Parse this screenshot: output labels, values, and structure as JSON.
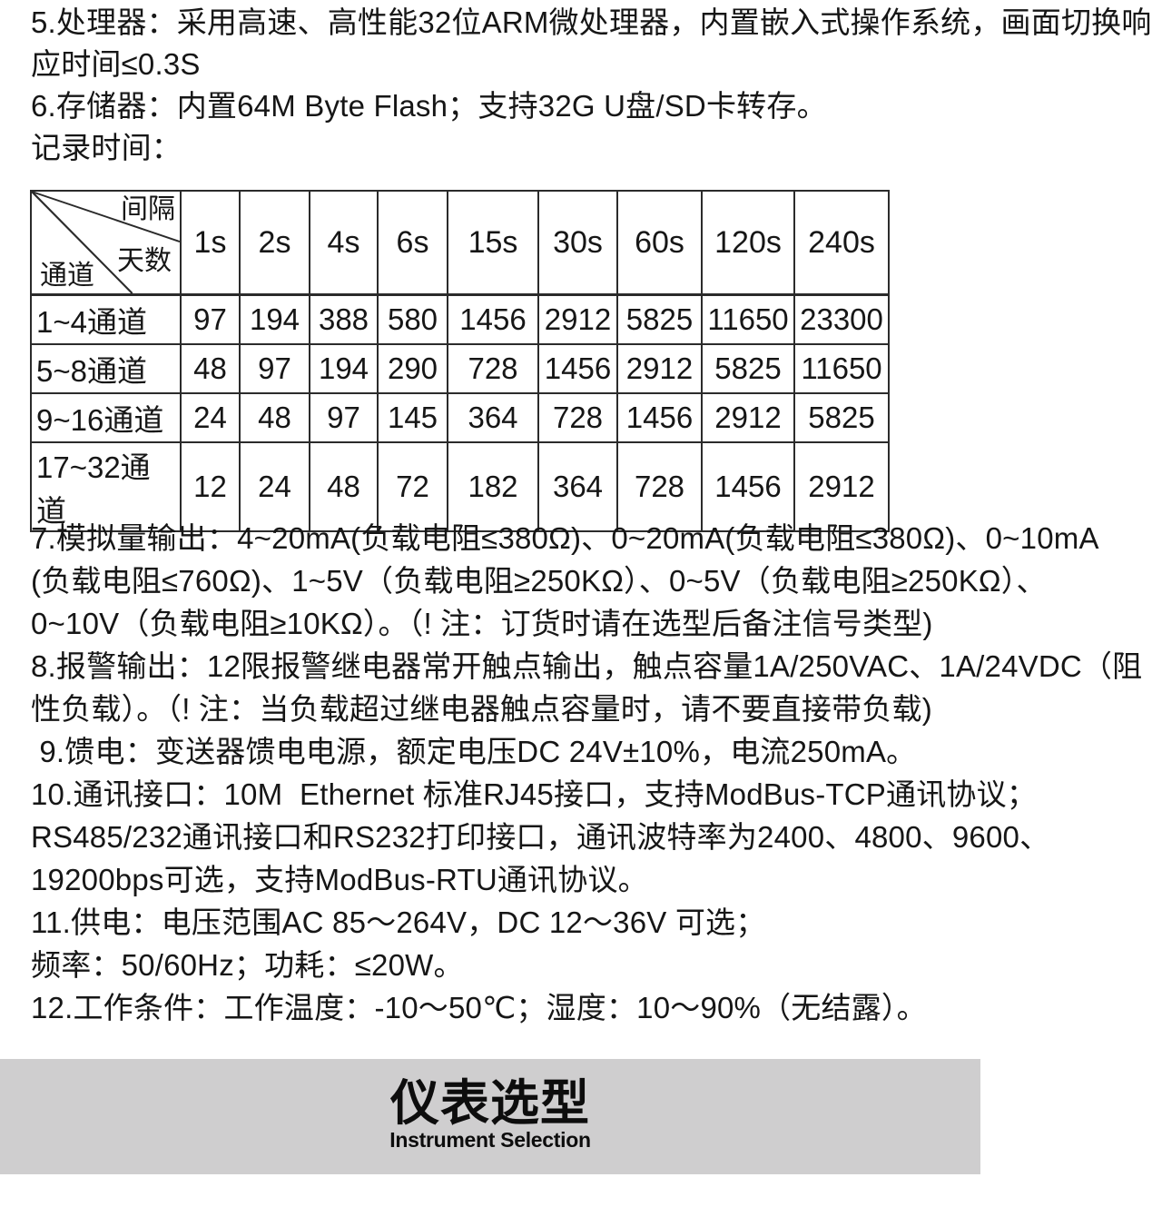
{
  "colors": {
    "page_background": "#ffffff",
    "text": "#161616",
    "table_border": "#2b2b2b",
    "banner_background": "#cfcecf",
    "banner_text": "#0d0d0d"
  },
  "specs_top": {
    "lines": [
      "5.处理器：采用高速、高性能32位ARM微处理器，内置嵌入式操作系统，画面切换响",
      "应时间≤0.3S",
      "6.存储器：内置64M Byte Flash；支持32G U盘/SD卡转存。",
      "记录时间："
    ]
  },
  "record_table": {
    "corner": {
      "top_label": "间隔",
      "middle_label": "天数",
      "bottom_label": "通道"
    },
    "interval_headers": [
      "1s",
      "2s",
      "4s",
      "6s",
      "15s",
      "30s",
      "60s",
      "120s",
      "240s"
    ],
    "rows": [
      {
        "channel": "1~4通道",
        "days": [
          "97",
          "194",
          "388",
          "580",
          "1456",
          "2912",
          "5825",
          "11650",
          "23300"
        ]
      },
      {
        "channel": "5~8通道",
        "days": [
          "48",
          "97",
          "194",
          "290",
          "728",
          "1456",
          "2912",
          "5825",
          "11650"
        ]
      },
      {
        "channel": "9~16通道",
        "days": [
          "24",
          "48",
          "97",
          "145",
          "364",
          "728",
          "1456",
          "2912",
          "5825"
        ]
      },
      {
        "channel": "17~32通道",
        "days": [
          "12",
          "24",
          "48",
          "72",
          "182",
          "364",
          "728",
          "1456",
          "2912"
        ]
      }
    ]
  },
  "specs_bottom": {
    "lines": [
      "7.模拟量输出：4~20mA(负载电阻≤380Ω)、0~20mA(负载电阻≤380Ω)、0~10mA",
      "(负载电阻≤760Ω)、1~5V（负载电阻≥250KΩ）、0~5V（负载电阻≥250KΩ）、",
      "0~10V（负载电阻≥10KΩ）。（! 注：订货时请在选型后备注信号类型)",
      "8.报警输出：12限报警继电器常开触点输出，触点容量1A/250VAC、1A/24VDC（阻",
      "性负载）。（! 注：当负载超过继电器触点容量时，请不要直接带负载)",
      " 9.馈电：变送器馈电电源，额定电压DC 24V±10%，电流250mA。",
      "10.通讯接口：10M  Ethernet 标准RJ45接口，支持ModBus-TCP通讯协议；",
      "RS485/232通讯接口和RS232打印接口，通讯波特率为2400、4800、9600、",
      "19200bps可选，支持ModBus-RTU通讯协议。",
      "11.供电：电压范围AC 85～264V，DC 12～36V 可选；",
      "频率：50/60Hz；功耗：≤20W。",
      "12.工作条件：工作温度：-10～50℃；湿度：10～90%（无结露）。"
    ]
  },
  "banner": {
    "title": "仪表选型",
    "subtitle": "Instrument Selection"
  }
}
